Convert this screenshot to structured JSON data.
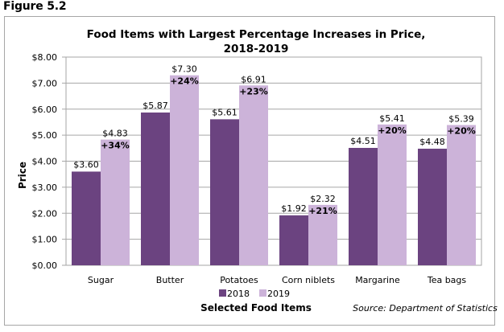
{
  "figure_label": "Figure 5.2",
  "chart_data": {
    "type": "bar",
    "title": "Food Items with Largest Percentage Increases in Price,",
    "title_line2": "2018-2019",
    "xlabel": "Selected Food Items",
    "ylabel": "Price",
    "ylim": [
      0,
      8
    ],
    "ytick_step": 1,
    "yticks": [
      "$0.00",
      "$1.00",
      "$2.00",
      "$3.00",
      "$4.00",
      "$5.00",
      "$6.00",
      "$7.00",
      "$8.00"
    ],
    "grid": true,
    "categories": [
      "Sugar",
      "Butter",
      "Potatoes",
      "Corn niblets",
      "Margarine",
      "Tea bags"
    ],
    "series": [
      {
        "name": "2018",
        "color": "#6b4380",
        "values": [
          3.6,
          5.87,
          5.61,
          1.92,
          4.51,
          4.48
        ],
        "labels": [
          "$3.60",
          "$5.87",
          "$5.61",
          "$1.92",
          "$4.51",
          "$4.48"
        ]
      },
      {
        "name": "2019",
        "color": "#ccb3d9",
        "values": [
          4.83,
          7.3,
          6.91,
          2.32,
          5.41,
          5.39
        ],
        "labels": [
          "$4.83",
          "$7.30",
          "$6.91",
          "$2.32",
          "$5.41",
          "$5.39"
        ]
      }
    ],
    "pct_change": [
      "+34%",
      "+24%",
      "+23%",
      "+21%",
      "+20%",
      "+20%"
    ],
    "legend": {
      "placement": "bottom-center",
      "entries": [
        "2018",
        "2019"
      ]
    },
    "source": "Source: Department of Statistics"
  }
}
